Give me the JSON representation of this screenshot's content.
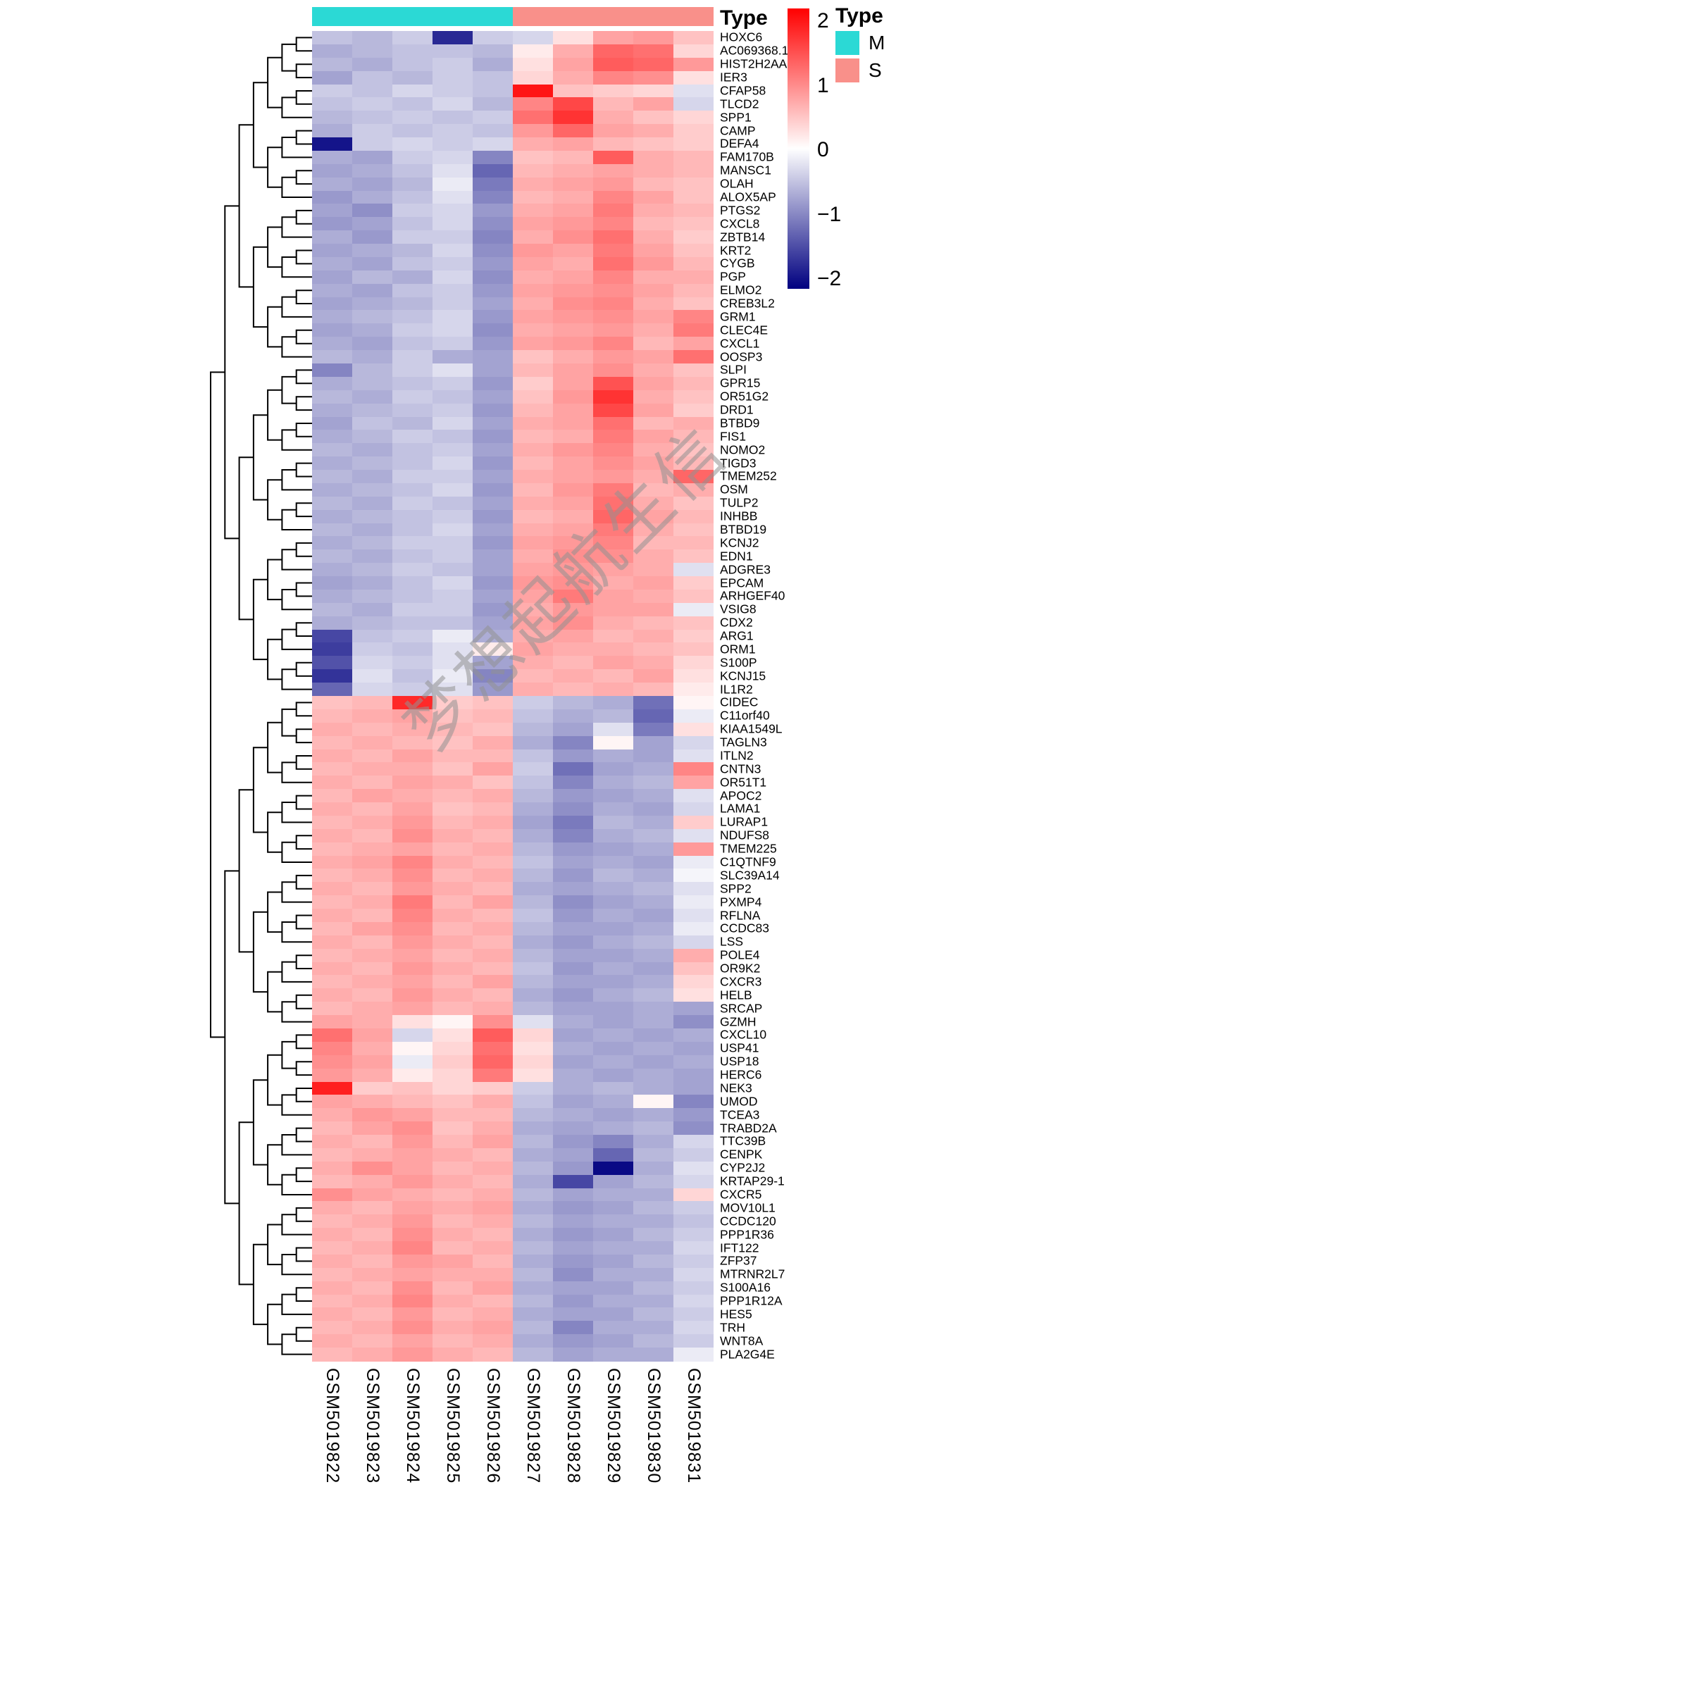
{
  "annotation": {
    "title": "Type",
    "groups": [
      {
        "label": "M",
        "color": "#2BD9D5",
        "n_samples": 5
      },
      {
        "label": "S",
        "color": "#F9908A",
        "n_samples": 5
      }
    ]
  },
  "colorbar": {
    "ticks": [
      "2",
      "1",
      "0",
      "−1",
      "−2"
    ],
    "max_color": "#FF0000",
    "mid_color": "#FFFFFF",
    "min_color": "#000080"
  },
  "watermark": "梦想起航生信",
  "chart_data": {
    "type": "heatmap",
    "legend_title": "Type",
    "value_range": [
      -2.5,
      2.5
    ],
    "samples": [
      "GSM5019822",
      "GSM5019823",
      "GSM5019824",
      "GSM5019825",
      "GSM5019826",
      "GSM5019827",
      "GSM5019828",
      "GSM5019829",
      "GSM5019830",
      "GSM5019831"
    ],
    "sample_groups": [
      "M",
      "M",
      "M",
      "M",
      "M",
      "S",
      "S",
      "S",
      "S",
      "S"
    ],
    "genes": [
      "HOXC6",
      "AC069368.1",
      "HIST2H2AA3",
      "IER3",
      "CFAP58",
      "TLCD2",
      "SPP1",
      "CAMP",
      "DEFA4",
      "FAM170B",
      "MANSC1",
      "OLAH",
      "ALOX5AP",
      "PTGS2",
      "CXCL8",
      "ZBTB14",
      "KRT2",
      "CYGB",
      "PGP",
      "ELMO2",
      "CREB3L2",
      "GRM1",
      "CLEC4E",
      "CXCL1",
      "OOSP3",
      "SLPI",
      "GPR15",
      "OR51G2",
      "DRD1",
      "BTBD9",
      "FIS1",
      "NOMO2",
      "TIGD3",
      "TMEM252",
      "OSM",
      "TULP2",
      "INHBB",
      "BTBD19",
      "KCNJ2",
      "EDN1",
      "ADGRE3",
      "EPCAM",
      "ARHGEF40",
      "VSIG8",
      "CDX2",
      "ARG1",
      "ORM1",
      "S100P",
      "KCNJ15",
      "IL1R2",
      "CIDEC",
      "C11orf40",
      "KIAA1549L",
      "TAGLN3",
      "ITLN2",
      "CNTN3",
      "OR51T1",
      "APOC2",
      "LAMA1",
      "LURAP1",
      "NDUFS8",
      "TMEM225",
      "C1QTNF9",
      "SLC39A14",
      "SPP2",
      "PXMP4",
      "RFLNA",
      "CCDC83",
      "LSS",
      "POLE4",
      "OR9K2",
      "CXCR3",
      "HELB",
      "SRCAP",
      "GZMH",
      "CXCL10",
      "USP41",
      "USP18",
      "HERC6",
      "NEK3",
      "UMOD",
      "TCEA3",
      "TRABD2A",
      "TTC39B",
      "CENPK",
      "CYP2J2",
      "KRTAP29-1",
      "CXCR5",
      "MOV10L1",
      "CCDC120",
      "PPP1R36",
      "IFT122",
      "ZFP37",
      "MTRNR2L7",
      "S100A16",
      "PPP1R12A",
      "HES5",
      "TRH",
      "WNT8A",
      "PLA2G4E"
    ],
    "values": [
      [
        -0.6,
        -0.7,
        -0.5,
        -2.1,
        -0.5,
        -0.4,
        0.3,
        0.9,
        1.0,
        0.6
      ],
      [
        -0.8,
        -0.7,
        -0.6,
        -0.6,
        -0.7,
        0.2,
        0.8,
        1.5,
        1.4,
        0.4
      ],
      [
        -0.7,
        -0.8,
        -0.6,
        -0.5,
        -0.8,
        0.3,
        0.9,
        1.6,
        1.5,
        1.0
      ],
      [
        -0.9,
        -0.6,
        -0.7,
        -0.5,
        -0.6,
        0.4,
        0.8,
        1.2,
        1.1,
        0.3
      ],
      [
        -0.5,
        -0.6,
        -0.4,
        -0.5,
        -0.6,
        2.3,
        0.6,
        0.5,
        0.4,
        -0.3
      ],
      [
        -0.6,
        -0.5,
        -0.6,
        -0.4,
        -0.7,
        1.2,
        1.8,
        0.7,
        0.9,
        -0.4
      ],
      [
        -0.7,
        -0.6,
        -0.5,
        -0.6,
        -0.5,
        1.4,
        2.0,
        0.8,
        0.6,
        0.4
      ],
      [
        -0.8,
        -0.5,
        -0.6,
        -0.5,
        -0.6,
        1.0,
        1.5,
        0.9,
        0.8,
        0.5
      ],
      [
        -2.3,
        -0.5,
        -0.4,
        -0.5,
        -0.4,
        0.8,
        0.9,
        0.7,
        0.6,
        0.5
      ],
      [
        -0.8,
        -0.9,
        -0.5,
        -0.4,
        -1.2,
        0.6,
        0.7,
        1.6,
        0.8,
        0.7
      ],
      [
        -0.9,
        -0.8,
        -0.6,
        -0.3,
        -1.5,
        0.7,
        0.8,
        0.9,
        0.8,
        0.7
      ],
      [
        -0.8,
        -0.9,
        -0.7,
        -0.2,
        -1.3,
        0.8,
        0.9,
        1.0,
        0.7,
        0.6
      ],
      [
        -1.0,
        -0.8,
        -0.6,
        -0.3,
        -1.2,
        0.7,
        0.8,
        1.2,
        0.9,
        0.6
      ],
      [
        -0.9,
        -1.1,
        -0.5,
        -0.4,
        -1.0,
        0.8,
        0.9,
        1.3,
        0.8,
        0.7
      ],
      [
        -1.0,
        -0.9,
        -0.6,
        -0.4,
        -1.1,
        0.9,
        1.0,
        1.2,
        0.7,
        0.6
      ],
      [
        -0.8,
        -1.0,
        -0.5,
        -0.5,
        -1.2,
        0.8,
        1.1,
        1.4,
        0.8,
        0.5
      ],
      [
        -0.9,
        -0.8,
        -0.7,
        -0.4,
        -1.1,
        1.0,
        0.9,
        1.3,
        0.9,
        0.6
      ],
      [
        -0.8,
        -0.9,
        -0.6,
        -0.5,
        -1.0,
        0.9,
        0.8,
        1.4,
        1.0,
        0.7
      ],
      [
        -0.9,
        -0.7,
        -0.8,
        -0.4,
        -1.1,
        0.8,
        0.9,
        1.2,
        0.8,
        0.8
      ],
      [
        -0.8,
        -0.9,
        -0.6,
        -0.5,
        -1.0,
        0.9,
        1.0,
        1.1,
        0.9,
        0.7
      ],
      [
        -0.9,
        -0.8,
        -0.7,
        -0.5,
        -0.9,
        0.8,
        1.1,
        1.2,
        0.8,
        0.6
      ],
      [
        -0.8,
        -0.7,
        -0.6,
        -0.4,
        -1.0,
        0.9,
        1.0,
        1.1,
        0.9,
        1.2
      ],
      [
        -0.9,
        -0.8,
        -0.5,
        -0.4,
        -1.1,
        0.8,
        0.9,
        1.0,
        0.8,
        1.3
      ],
      [
        -0.8,
        -0.9,
        -0.6,
        -0.5,
        -1.0,
        0.9,
        1.0,
        1.2,
        0.7,
        0.9
      ],
      [
        -0.7,
        -0.8,
        -0.5,
        -0.8,
        -0.9,
        0.6,
        0.8,
        1.0,
        0.9,
        1.4
      ],
      [
        -1.2,
        -0.7,
        -0.5,
        -0.3,
        -0.9,
        0.7,
        0.9,
        1.1,
        0.8,
        0.6
      ],
      [
        -0.8,
        -0.7,
        -0.6,
        -0.5,
        -1.0,
        0.5,
        0.9,
        1.7,
        0.9,
        0.7
      ],
      [
        -0.7,
        -0.8,
        -0.5,
        -0.6,
        -0.9,
        0.6,
        1.0,
        2.0,
        0.8,
        0.6
      ],
      [
        -0.8,
        -0.7,
        -0.6,
        -0.5,
        -1.0,
        0.7,
        0.9,
        1.8,
        0.9,
        0.5
      ],
      [
        -0.9,
        -0.6,
        -0.7,
        -0.4,
        -0.9,
        0.8,
        0.9,
        1.4,
        0.7,
        0.8
      ],
      [
        -0.8,
        -0.7,
        -0.5,
        -0.6,
        -1.0,
        0.7,
        0.8,
        1.3,
        0.9,
        0.7
      ],
      [
        -0.7,
        -0.8,
        -0.6,
        -0.5,
        -0.9,
        0.8,
        1.0,
        1.2,
        0.8,
        0.6
      ],
      [
        -0.8,
        -0.7,
        -0.6,
        -0.4,
        -1.0,
        0.7,
        0.9,
        1.1,
        0.9,
        0.7
      ],
      [
        -0.7,
        -0.8,
        -0.5,
        -0.5,
        -0.9,
        0.8,
        0.9,
        1.0,
        0.8,
        1.5
      ],
      [
        -0.8,
        -0.7,
        -0.6,
        -0.4,
        -1.0,
        0.7,
        1.0,
        1.3,
        0.7,
        0.8
      ],
      [
        -0.7,
        -0.8,
        -0.5,
        -0.6,
        -0.9,
        0.8,
        0.9,
        1.4,
        0.8,
        0.6
      ],
      [
        -0.8,
        -0.7,
        -0.6,
        -0.5,
        -1.0,
        0.7,
        0.8,
        1.5,
        0.9,
        0.7
      ],
      [
        -0.7,
        -0.8,
        -0.6,
        -0.4,
        -0.9,
        0.8,
        0.9,
        1.3,
        0.8,
        0.6
      ],
      [
        -0.8,
        -0.7,
        -0.5,
        -0.5,
        -1.0,
        0.9,
        1.0,
        1.2,
        0.7,
        0.7
      ],
      [
        -0.7,
        -0.8,
        -0.6,
        -0.5,
        -0.9,
        0.8,
        1.1,
        1.1,
        0.8,
        0.6
      ],
      [
        -0.8,
        -0.7,
        -0.5,
        -0.6,
        -0.9,
        0.9,
        1.0,
        0.9,
        0.8,
        -0.3
      ],
      [
        -0.9,
        -0.8,
        -0.6,
        -0.4,
        -1.0,
        1.0,
        1.1,
        0.8,
        0.9,
        0.5
      ],
      [
        -0.8,
        -0.7,
        -0.6,
        -0.5,
        -0.9,
        0.9,
        1.3,
        0.9,
        0.8,
        0.6
      ],
      [
        -0.7,
        -0.8,
        -0.5,
        -0.5,
        -1.0,
        0.8,
        1.0,
        0.9,
        0.9,
        -0.2
      ],
      [
        -0.8,
        -0.7,
        -0.6,
        -0.6,
        -0.9,
        0.9,
        1.1,
        0.8,
        0.7,
        0.6
      ],
      [
        -1.8,
        -0.6,
        -0.5,
        -0.2,
        -0.8,
        0.8,
        0.9,
        0.7,
        0.8,
        0.5
      ],
      [
        -1.9,
        -0.5,
        -0.6,
        -0.3,
        0.2,
        0.9,
        0.8,
        0.8,
        0.7,
        0.6
      ],
      [
        -1.7,
        -0.4,
        -0.5,
        -0.3,
        -0.9,
        0.8,
        0.7,
        0.9,
        0.8,
        0.4
      ],
      [
        -2.0,
        -0.3,
        -0.6,
        -0.2,
        -1.2,
        0.7,
        0.8,
        0.7,
        0.9,
        0.3
      ],
      [
        -1.5,
        -0.4,
        -0.5,
        -0.3,
        -1.0,
        0.8,
        0.7,
        0.8,
        0.7,
        0.2
      ],
      [
        0.6,
        0.7,
        2.1,
        0.5,
        0.6,
        -0.5,
        -0.7,
        -0.8,
        -1.4,
        0.1
      ],
      [
        0.7,
        0.8,
        0.9,
        0.6,
        0.7,
        -0.6,
        -0.8,
        -0.7,
        -1.5,
        -0.2
      ],
      [
        0.8,
        0.7,
        0.8,
        0.7,
        0.6,
        -0.7,
        -0.9,
        -0.3,
        -1.3,
        0.3
      ],
      [
        0.7,
        0.8,
        0.7,
        0.6,
        0.8,
        -0.8,
        -1.2,
        0.1,
        -0.9,
        -0.4
      ],
      [
        0.8,
        0.7,
        0.9,
        0.7,
        0.7,
        -0.6,
        -1.0,
        -0.8,
        -0.9,
        -0.3
      ],
      [
        0.7,
        0.8,
        0.8,
        0.6,
        0.9,
        -0.5,
        -1.4,
        -0.9,
        -0.8,
        1.2
      ],
      [
        0.8,
        0.7,
        0.9,
        0.8,
        0.6,
        -0.6,
        -1.2,
        -0.8,
        -0.7,
        0.9
      ],
      [
        0.7,
        0.9,
        0.8,
        0.7,
        0.8,
        -0.7,
        -1.0,
        -0.9,
        -0.8,
        -0.3
      ],
      [
        0.8,
        0.7,
        0.9,
        0.6,
        0.7,
        -0.8,
        -1.1,
        -0.8,
        -0.9,
        -0.4
      ],
      [
        0.7,
        0.8,
        1.0,
        0.7,
        0.8,
        -0.9,
        -1.3,
        -0.7,
        -0.8,
        0.5
      ],
      [
        0.8,
        0.7,
        1.1,
        0.8,
        0.7,
        -0.8,
        -1.2,
        -0.8,
        -0.7,
        -0.3
      ],
      [
        0.7,
        0.8,
        0.9,
        0.7,
        0.8,
        -0.7,
        -1.0,
        -0.9,
        -0.8,
        1.0
      ],
      [
        0.8,
        0.9,
        1.2,
        0.8,
        0.7,
        -0.6,
        -0.9,
        -0.8,
        -0.9,
        -0.2
      ],
      [
        0.7,
        0.8,
        1.1,
        0.7,
        0.8,
        -0.7,
        -1.0,
        -0.7,
        -0.8,
        -0.1
      ],
      [
        0.8,
        0.7,
        1.0,
        0.8,
        0.7,
        -0.8,
        -0.9,
        -0.8,
        -0.7,
        -0.3
      ],
      [
        0.7,
        0.8,
        1.3,
        0.7,
        0.9,
        -0.7,
        -1.1,
        -0.9,
        -0.8,
        -0.2
      ],
      [
        0.8,
        0.7,
        1.2,
        0.8,
        0.7,
        -0.6,
        -1.0,
        -0.8,
        -0.9,
        -0.3
      ],
      [
        0.7,
        0.9,
        1.1,
        0.7,
        0.8,
        -0.7,
        -0.9,
        -0.9,
        -0.8,
        -0.2
      ],
      [
        0.8,
        0.7,
        1.0,
        0.8,
        0.7,
        -0.8,
        -1.0,
        -0.8,
        -0.7,
        -0.4
      ],
      [
        0.7,
        0.8,
        0.9,
        0.7,
        0.8,
        -0.7,
        -0.9,
        -0.9,
        -0.8,
        0.8
      ],
      [
        0.8,
        0.7,
        1.0,
        0.8,
        0.7,
        -0.6,
        -1.0,
        -0.8,
        -0.9,
        0.6
      ],
      [
        0.7,
        0.8,
        0.9,
        0.7,
        0.9,
        -0.7,
        -0.9,
        -0.9,
        -0.8,
        0.4
      ],
      [
        0.8,
        0.7,
        1.0,
        0.8,
        0.7,
        -0.8,
        -1.0,
        -0.8,
        -0.7,
        0.3
      ],
      [
        0.7,
        0.8,
        0.9,
        0.7,
        0.8,
        -0.7,
        -0.9,
        -0.9,
        -0.8,
        -0.9
      ],
      [
        0.9,
        0.8,
        0.3,
        0.1,
        1.1,
        -0.3,
        -0.8,
        -0.9,
        -0.8,
        -1.1
      ],
      [
        1.4,
        0.9,
        -0.4,
        0.3,
        1.6,
        0.4,
        -0.9,
        -0.8,
        -0.9,
        -0.8
      ],
      [
        1.2,
        0.8,
        0.1,
        0.4,
        1.4,
        0.3,
        -0.8,
        -0.9,
        -0.8,
        -0.9
      ],
      [
        1.1,
        0.9,
        -0.2,
        0.5,
        1.5,
        0.4,
        -0.9,
        -0.8,
        -0.9,
        -0.8
      ],
      [
        1.0,
        0.8,
        0.2,
        0.4,
        1.3,
        0.3,
        -0.8,
        -0.9,
        -0.8,
        -0.9
      ],
      [
        2.2,
        0.5,
        0.6,
        0.4,
        0.5,
        -0.5,
        -0.8,
        -0.7,
        -0.8,
        -0.9
      ],
      [
        0.9,
        0.8,
        0.7,
        0.6,
        0.8,
        -0.6,
        -0.9,
        -0.8,
        0.1,
        -1.2
      ],
      [
        0.8,
        1.0,
        0.9,
        0.7,
        0.7,
        -0.7,
        -0.8,
        -0.9,
        -0.8,
        -1.0
      ],
      [
        0.7,
        0.9,
        1.1,
        0.6,
        0.8,
        -0.8,
        -0.9,
        -0.8,
        -0.7,
        -1.1
      ],
      [
        0.8,
        0.7,
        1.0,
        0.7,
        0.9,
        -0.7,
        -1.0,
        -1.2,
        -0.8,
        -0.4
      ],
      [
        0.7,
        0.8,
        0.9,
        0.8,
        0.7,
        -0.8,
        -0.9,
        -1.5,
        -0.7,
        -0.5
      ],
      [
        0.8,
        1.1,
        0.9,
        0.7,
        0.8,
        -0.7,
        -1.0,
        -2.4,
        -0.8,
        -0.3
      ],
      [
        0.7,
        0.8,
        1.0,
        0.8,
        0.7,
        -0.8,
        -1.8,
        -0.9,
        -0.7,
        -0.4
      ],
      [
        1.1,
        0.9,
        0.8,
        0.7,
        0.8,
        -0.7,
        -0.9,
        -0.8,
        -0.8,
        0.4
      ],
      [
        0.8,
        0.7,
        0.9,
        0.8,
        0.9,
        -0.8,
        -1.0,
        -0.9,
        -0.7,
        -0.5
      ],
      [
        0.7,
        0.8,
        1.0,
        0.7,
        0.8,
        -0.7,
        -0.9,
        -0.8,
        -0.8,
        -0.6
      ],
      [
        0.8,
        0.7,
        1.1,
        0.8,
        0.7,
        -0.8,
        -1.0,
        -0.9,
        -0.7,
        -0.5
      ],
      [
        0.7,
        0.8,
        1.2,
        0.7,
        0.8,
        -0.7,
        -0.9,
        -0.8,
        -0.8,
        -0.4
      ],
      [
        0.8,
        0.7,
        1.0,
        0.9,
        0.7,
        -0.8,
        -1.0,
        -0.9,
        -0.7,
        -0.5
      ],
      [
        0.7,
        0.8,
        0.9,
        0.8,
        0.8,
        -0.7,
        -1.1,
        -0.8,
        -0.8,
        -0.4
      ],
      [
        0.8,
        0.7,
        1.1,
        0.7,
        0.9,
        -0.8,
        -0.9,
        -0.9,
        -0.7,
        -0.5
      ],
      [
        0.7,
        0.8,
        1.2,
        0.8,
        0.7,
        -0.7,
        -1.0,
        -0.8,
        -0.8,
        -0.4
      ],
      [
        0.8,
        0.7,
        1.0,
        0.7,
        0.8,
        -0.8,
        -0.9,
        -0.9,
        -0.7,
        -0.5
      ],
      [
        0.7,
        0.8,
        1.1,
        0.8,
        0.9,
        -0.7,
        -1.2,
        -0.8,
        -0.8,
        -0.4
      ],
      [
        0.8,
        0.7,
        0.9,
        0.7,
        0.8,
        -0.8,
        -1.0,
        -0.9,
        -0.7,
        -0.5
      ],
      [
        0.7,
        0.8,
        1.0,
        0.8,
        0.7,
        -0.7,
        -0.9,
        -0.8,
        -0.8,
        -0.2
      ]
    ]
  }
}
